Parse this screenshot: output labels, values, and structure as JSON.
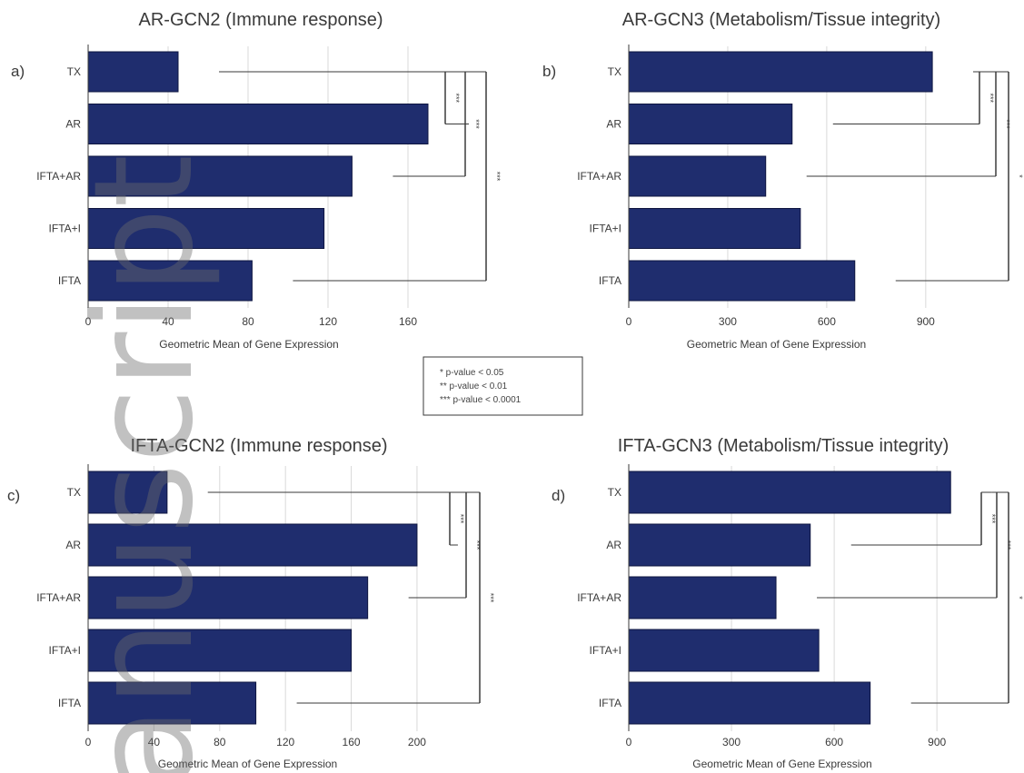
{
  "colors": {
    "bar": "#1f2d6e",
    "bar_stroke": "#0e1540",
    "line": "#3a3a3a",
    "grid": "#d9d9d9"
  },
  "legend": [
    "* p-value < 0.05",
    "** p-value < 0.01",
    "*** p-value < 0.0001"
  ],
  "watermark": "anuscript",
  "chart_data": [
    {
      "type": "bar",
      "panel": "a)",
      "title": "AR-GCN2 (Immune response)",
      "xlabel": "Geometric Mean of Gene Expression",
      "categories": [
        "TX",
        "AR",
        "IFTA+AR",
        "IFTA+I",
        "IFTA"
      ],
      "values": [
        45,
        170,
        132,
        118,
        82
      ],
      "xticks": [
        0,
        40,
        80,
        120,
        160
      ],
      "xlim": [
        0,
        170
      ],
      "sig_labels": [
        "***",
        "***",
        "***"
      ]
    },
    {
      "type": "bar",
      "panel": "b)",
      "title": "AR-GCN3 (Metabolism/Tissue integrity)",
      "xlabel": "Geometric Mean of Gene Expression",
      "categories": [
        "TX",
        "AR",
        "IFTA+AR",
        "IFTA+I",
        "IFTA"
      ],
      "values": [
        920,
        495,
        415,
        520,
        685
      ],
      "xticks": [
        0,
        300,
        600,
        900
      ],
      "xlim": [
        0,
        950
      ],
      "sig_labels": [
        "***",
        "***",
        "*"
      ]
    },
    {
      "type": "bar",
      "panel": "c)",
      "title": "IFTA-GCN2 (Immune response)",
      "xlabel": "Geometric Mean of Gene Expression",
      "categories": [
        "TX",
        "AR",
        "IFTA+AR",
        "IFTA+I",
        "IFTA"
      ],
      "values": [
        48,
        200,
        170,
        160,
        102
      ],
      "xticks": [
        0,
        40,
        80,
        120,
        160,
        200
      ],
      "xlim": [
        0,
        205
      ],
      "sig_labels": [
        "***",
        "***",
        "***"
      ]
    },
    {
      "type": "bar",
      "panel": "d)",
      "title": "IFTA-GCN3 (Metabolism/Tissue integrity)",
      "xlabel": "Geometric Mean of Gene Expression",
      "categories": [
        "TX",
        "AR",
        "IFTA+AR",
        "IFTA+I",
        "IFTA"
      ],
      "values": [
        940,
        530,
        430,
        555,
        705
      ],
      "xticks": [
        0,
        300,
        600,
        900
      ],
      "xlim": [
        0,
        950
      ],
      "sig_labels": [
        "***",
        "***",
        "*"
      ]
    }
  ]
}
